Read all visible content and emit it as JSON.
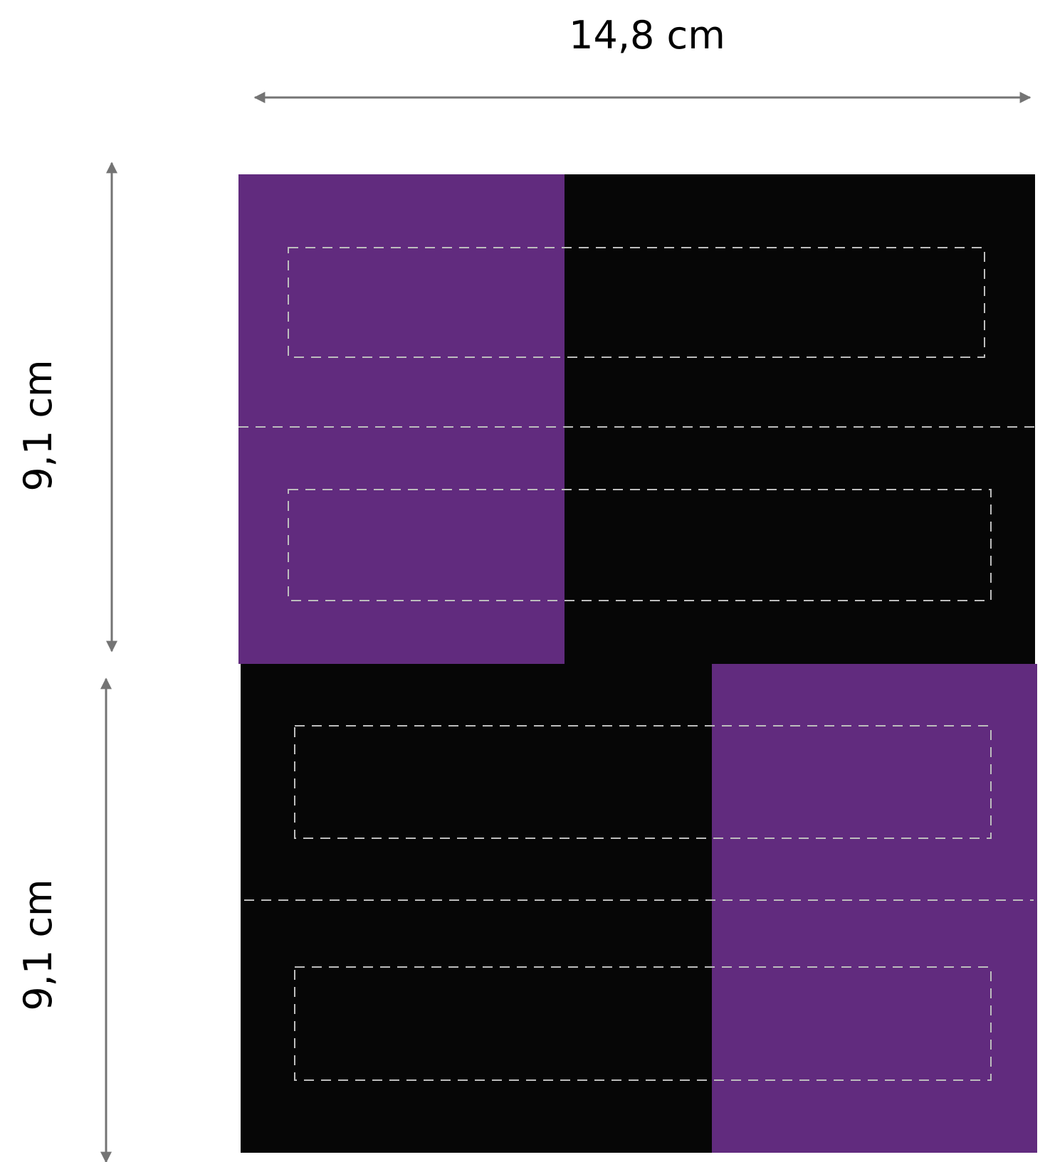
{
  "dimensions": {
    "width_label": "14,8 cm",
    "top_height_label": "9,1 cm",
    "bottom_height_label": "9,1 cm"
  },
  "colors": {
    "purple": "#612b7e",
    "black": "#060606",
    "arrow": "#747474",
    "cut_line": "#bdbdbd",
    "label_text": "#000000",
    "background": "#ffffff"
  }
}
